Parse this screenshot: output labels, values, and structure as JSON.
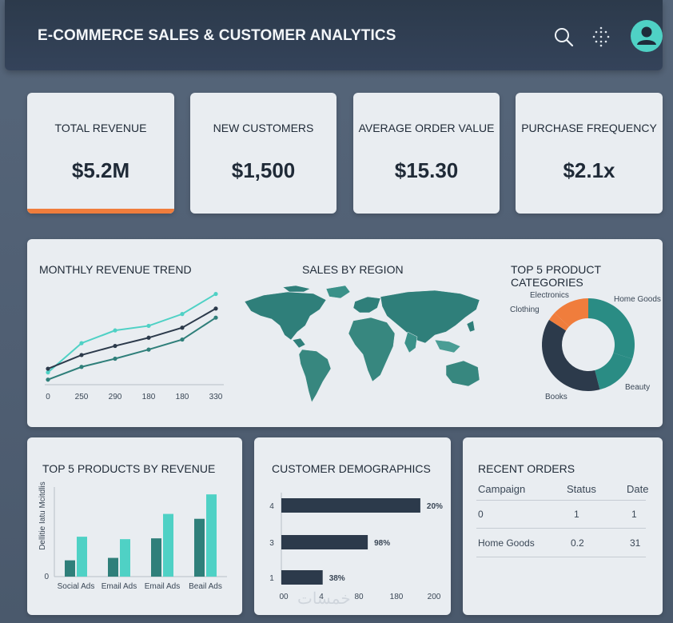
{
  "header": {
    "title": "E-COMMERCE SALES & CUSTOMER ANALYTICS",
    "icons": [
      "search-icon",
      "grid-dots-icon",
      "user-avatar-icon"
    ]
  },
  "kpis": [
    {
      "label": "TOTAL REVENUE",
      "value": "$5.2M"
    },
    {
      "label": "NEW CUSTOMERS",
      "value": "$1,500"
    },
    {
      "label": "AVERAGE ORDER VALUE",
      "value": "$15.30"
    },
    {
      "label": "PURCHASE FREQUENCY",
      "value": "$2.1x"
    }
  ],
  "colors": {
    "accent_orange": "#f07d3c",
    "teal_light": "#4fd1c5",
    "teal_dark": "#2f7f7a",
    "navy": "#2c3a4b",
    "teal_mid": "#2a8c84"
  },
  "revenue_trend": {
    "title": "MONTHLY REVENUE TREND",
    "chart_data": {
      "type": "line",
      "x": [
        "0",
        "250",
        "290",
        "180",
        "180",
        "330"
      ],
      "series": [
        {
          "values": [
            1.0,
            4.2,
            5.6,
            6.1,
            7.4,
            9.6
          ],
          "color": "#4fd1c5"
        },
        {
          "values": [
            1.4,
            2.9,
            3.9,
            4.8,
            5.9,
            8.0
          ],
          "color": "#2c3a4b"
        },
        {
          "values": [
            0.2,
            1.6,
            2.5,
            3.5,
            4.6,
            7.0
          ],
          "color": "#2f7f7a"
        }
      ],
      "ylim": [
        0,
        10
      ]
    }
  },
  "sales_by_region": {
    "title": "SALES BY REGION"
  },
  "product_categories": {
    "title": "TOP 5 PRODUCT CATEGORIES",
    "chart_data": {
      "type": "pie",
      "style": "donut",
      "labels": [
        "Home Goods",
        "Beauty",
        "Books",
        "Clothing",
        "Electronics"
      ],
      "values": [
        30,
        16,
        38,
        3,
        13
      ],
      "colors": [
        "#2a8c84",
        "#2a8c84",
        "#2c3a4b",
        "#f07d3c",
        "#f07d3c"
      ]
    }
  },
  "top_products": {
    "title": "TOP 5 PRODUCTS BY REVENUE",
    "ylabel": "Dellitie Iatu Mcitdlis",
    "zero_label": "0",
    "chart_data": {
      "type": "bar",
      "categories": [
        "Social Ads",
        "Email Ads",
        "Email Ads",
        "Beail Ads"
      ],
      "series": [
        {
          "values": [
            20,
            23,
            47,
            71
          ],
          "color": "#2f7f7a"
        },
        {
          "values": [
            49,
            46,
            77,
            101
          ],
          "color": "#4fd1c5"
        }
      ],
      "ylim": [
        0,
        110
      ]
    }
  },
  "demographics": {
    "title": "CUSTOMER DEMOGRAPHICS",
    "chart_data": {
      "type": "bar",
      "orientation": "horizontal",
      "categories": [
        "4",
        "3",
        "1"
      ],
      "values": [
        185,
        115,
        55
      ],
      "value_labels": [
        "20%",
        "98%",
        "38%"
      ],
      "x_ticks": [
        "00",
        "4",
        "80",
        "180",
        "200"
      ],
      "xlim": [
        0,
        200
      ]
    }
  },
  "recent_orders": {
    "title": "RECENT ORDERS",
    "columns": [
      "Campaign",
      "Status",
      "Date"
    ],
    "rows": [
      [
        "0",
        "1",
        "1"
      ],
      [
        "Home Goods",
        "0.2",
        "31"
      ]
    ]
  },
  "watermark": "خمسات"
}
